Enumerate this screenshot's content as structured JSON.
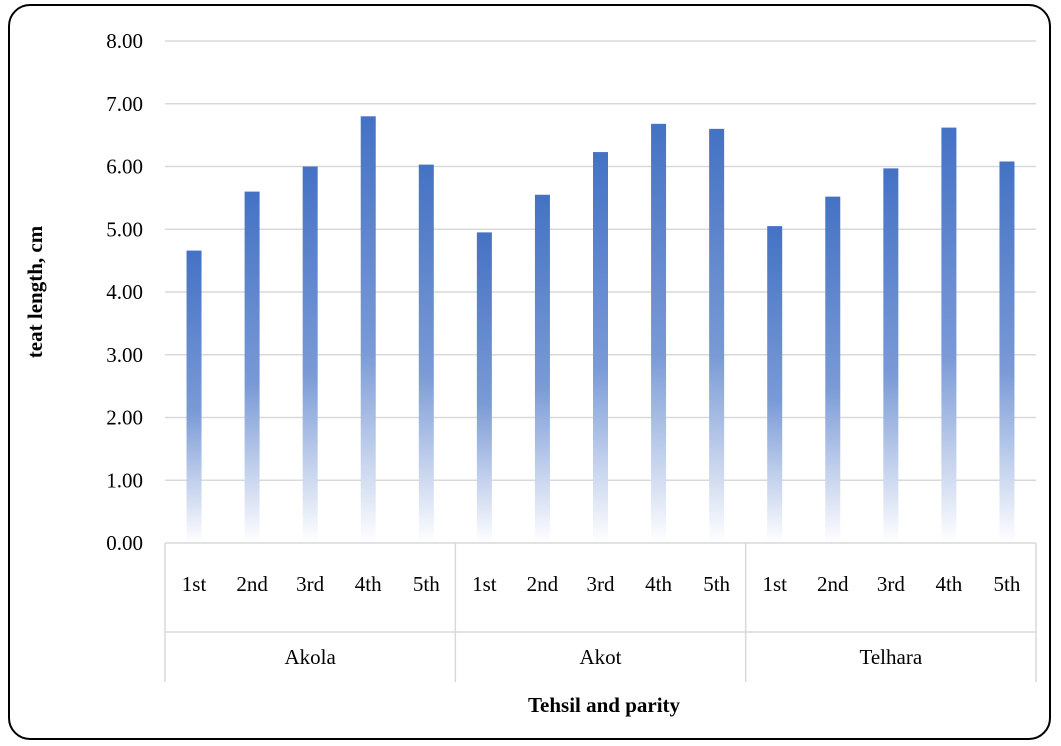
{
  "chart_data": {
    "type": "bar",
    "title": "",
    "xlabel": "Tehsil and parity",
    "ylabel": "teat length, cm",
    "ylim": [
      0,
      8
    ],
    "yticks": [
      "0.00",
      "1.00",
      "2.00",
      "3.00",
      "4.00",
      "5.00",
      "6.00",
      "7.00",
      "8.00"
    ],
    "grid": true,
    "legend": "none",
    "bar_color": "#4472C4",
    "groups": [
      {
        "name": "Akola",
        "categories": [
          "1st",
          "2nd",
          "3rd",
          "4th",
          "5th"
        ],
        "values": [
          4.66,
          5.6,
          6.0,
          6.8,
          6.03
        ]
      },
      {
        "name": "Akot",
        "categories": [
          "1st",
          "2nd",
          "3rd",
          "4th",
          "5th"
        ],
        "values": [
          4.95,
          5.55,
          6.23,
          6.68,
          6.6
        ]
      },
      {
        "name": "Telhara",
        "categories": [
          "1st",
          "2nd",
          "3rd",
          "4th",
          "5th"
        ],
        "values": [
          5.05,
          5.52,
          5.97,
          6.62,
          6.08
        ]
      }
    ]
  }
}
